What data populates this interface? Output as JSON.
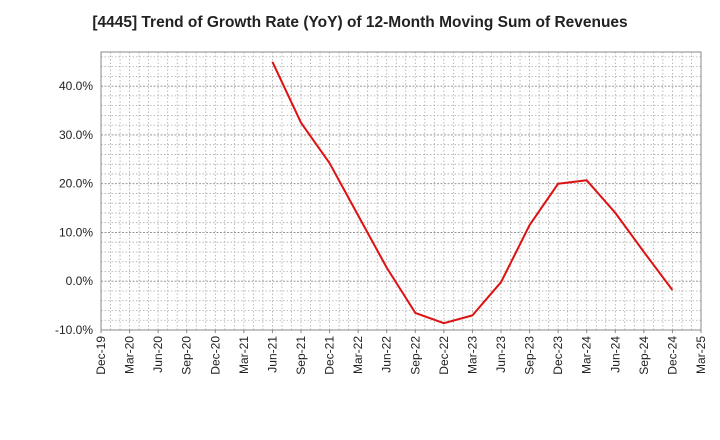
{
  "chart_data": {
    "type": "line",
    "title": "[4445]  Trend of Growth Rate (YoY) of 12-Month Moving Sum of Revenues",
    "xlabel": "",
    "ylabel": "",
    "x_ticks": [
      "Dec-19",
      "Mar-20",
      "Jun-20",
      "Sep-20",
      "Dec-20",
      "Mar-21",
      "Jun-21",
      "Sep-21",
      "Dec-21",
      "Mar-22",
      "Jun-22",
      "Sep-22",
      "Dec-22",
      "Mar-23",
      "Jun-23",
      "Sep-23",
      "Dec-23",
      "Mar-24",
      "Jun-24",
      "Sep-24",
      "Dec-24",
      "Mar-25"
    ],
    "y_ticks": [
      -10,
      0,
      10,
      20,
      30,
      40
    ],
    "y_tick_labels": [
      "-10.0%",
      "0.0%",
      "10.0%",
      "20.0%",
      "30.0%",
      "40.0%"
    ],
    "ylim": [
      -10,
      47
    ],
    "grid": true,
    "series": [
      {
        "color": "#dd1111",
        "x": [
          "Jun-21",
          "Sep-21",
          "Dec-21",
          "Mar-22",
          "Jun-22",
          "Sep-22",
          "Dec-22",
          "Mar-23",
          "Jun-23",
          "Sep-23",
          "Dec-23",
          "Mar-24",
          "Jun-24",
          "Sep-24",
          "Dec-24"
        ],
        "values": [
          45.0,
          32.5,
          24.2,
          13.5,
          2.8,
          -6.5,
          -8.6,
          -7.0,
          -0.2,
          11.5,
          20.0,
          20.7,
          14.0,
          6.0,
          -1.8
        ]
      }
    ]
  }
}
